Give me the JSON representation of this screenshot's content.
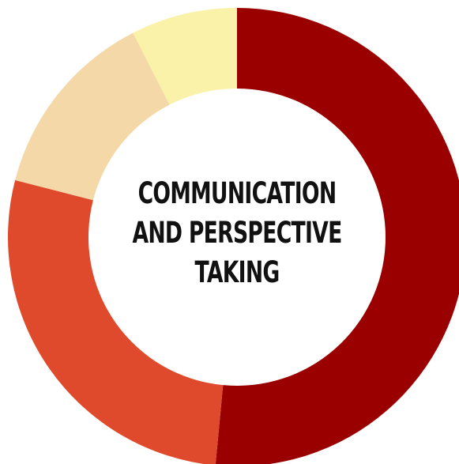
{
  "chart_data": {
    "type": "pie",
    "donut": true,
    "title_lines": [
      "COMMUNICATION",
      "AND PERSPECTIVE",
      "TAKING"
    ],
    "values": [
      51.5,
      27.5,
      13.5,
      7.5
    ],
    "colors": [
      "#9b0000",
      "#e04a2c",
      "#f5d8a8",
      "#f9f2a8"
    ],
    "start_angle_deg": 0,
    "direction": "clockwise",
    "legend": "none"
  }
}
